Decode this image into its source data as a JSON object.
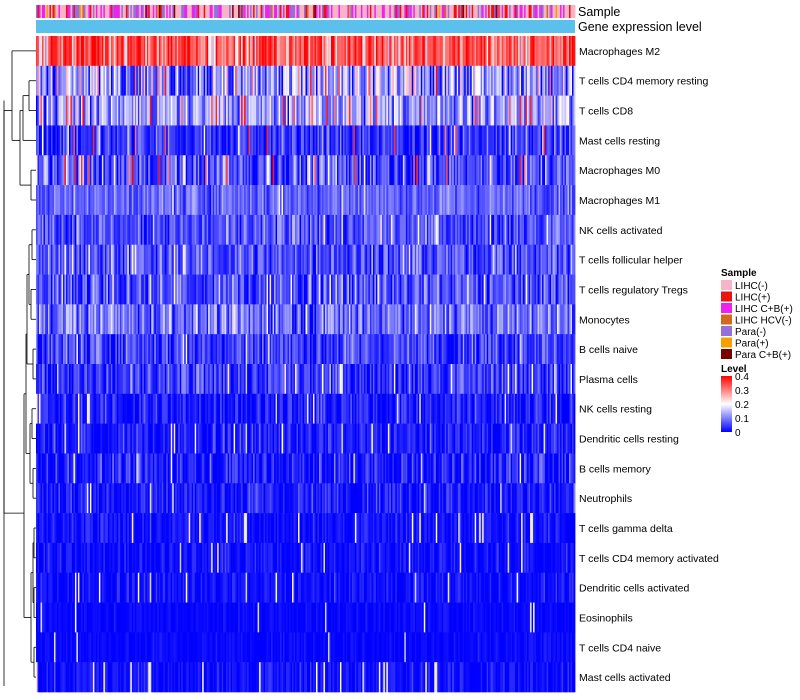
{
  "chart_data": {
    "type": "heatmap",
    "title": "",
    "n_samples": 360,
    "annotation_tracks": [
      {
        "name": "Sample"
      },
      {
        "name": "Gene expression level"
      }
    ],
    "rows": [
      {
        "label": "Macrophages M2",
        "mean": 0.32,
        "spread": 0.07,
        "red_prob": 0.45
      },
      {
        "label": "T cells CD4 memory resting",
        "mean": 0.12,
        "spread": 0.08,
        "red_prob": 0.03
      },
      {
        "label": "T cells CD8",
        "mean": 0.12,
        "spread": 0.06,
        "red_prob": 0.05
      },
      {
        "label": "Mast cells resting",
        "mean": 0.04,
        "spread": 0.04,
        "red_prob": 0.02
      },
      {
        "label": "Macrophages M0",
        "mean": 0.06,
        "spread": 0.05,
        "red_prob": 0.05
      },
      {
        "label": "Macrophages M1",
        "mean": 0.08,
        "spread": 0.03,
        "red_prob": 0.0
      },
      {
        "label": "NK cells activated",
        "mean": 0.06,
        "spread": 0.04,
        "red_prob": 0.0
      },
      {
        "label": "T cells follicular helper",
        "mean": 0.06,
        "spread": 0.04,
        "red_prob": 0.0
      },
      {
        "label": "T cells regulatory  Tregs",
        "mean": 0.06,
        "spread": 0.05,
        "red_prob": 0.0
      },
      {
        "label": "Monocytes",
        "mean": 0.09,
        "spread": 0.05,
        "red_prob": 0.0
      },
      {
        "label": "B cells naive",
        "mean": 0.05,
        "spread": 0.04,
        "red_prob": 0.0
      },
      {
        "label": "Plasma cells",
        "mean": 0.04,
        "spread": 0.04,
        "red_prob": 0.0
      },
      {
        "label": "NK cells resting",
        "mean": 0.02,
        "spread": 0.03,
        "red_prob": 0.0
      },
      {
        "label": "Dendritic cells resting",
        "mean": 0.02,
        "spread": 0.03,
        "red_prob": 0.0
      },
      {
        "label": "B cells memory",
        "mean": 0.02,
        "spread": 0.04,
        "red_prob": 0.0
      },
      {
        "label": "Neutrophils",
        "mean": 0.02,
        "spread": 0.03,
        "red_prob": 0.0
      },
      {
        "label": "T cells gamma delta",
        "mean": 0.01,
        "spread": 0.02,
        "red_prob": 0.0
      },
      {
        "label": "T cells CD4 memory activated",
        "mean": 0.01,
        "spread": 0.02,
        "red_prob": 0.0
      },
      {
        "label": "Dendritic cells activated",
        "mean": 0.01,
        "spread": 0.02,
        "red_prob": 0.0
      },
      {
        "label": "Eosinophils",
        "mean": 0.005,
        "spread": 0.01,
        "red_prob": 0.0
      },
      {
        "label": "T cells CD4 naive",
        "mean": 0.005,
        "spread": 0.01,
        "red_prob": 0.0
      },
      {
        "label": "Mast cells activated",
        "mean": 0.01,
        "spread": 0.02,
        "red_prob": 0.0
      }
    ],
    "sample_legend": {
      "title": "Sample",
      "entries": [
        {
          "label": "LIHC(-)",
          "color": "#f7b4c4"
        },
        {
          "label": "LIHC(+)",
          "color": "#ee1111"
        },
        {
          "label": "LIHC C+B(+)",
          "color": "#ee22ee"
        },
        {
          "label": "LIHC HCV(-)",
          "color": "#d2691e"
        },
        {
          "label": "Para(-)",
          "color": "#9370db"
        },
        {
          "label": "Para(+)",
          "color": "#f5a000"
        },
        {
          "label": "Para C+B(+)",
          "color": "#7a0000"
        }
      ]
    },
    "level_legend": {
      "title": "Level",
      "ticks": [
        "0.4",
        "0.3",
        "0.2",
        "0.1",
        "0"
      ],
      "range": [
        0,
        0.4
      ],
      "colors": [
        "#0000ff",
        "#ffffff",
        "#ff0000"
      ]
    },
    "expression_track_color": "#5bc0eb"
  }
}
